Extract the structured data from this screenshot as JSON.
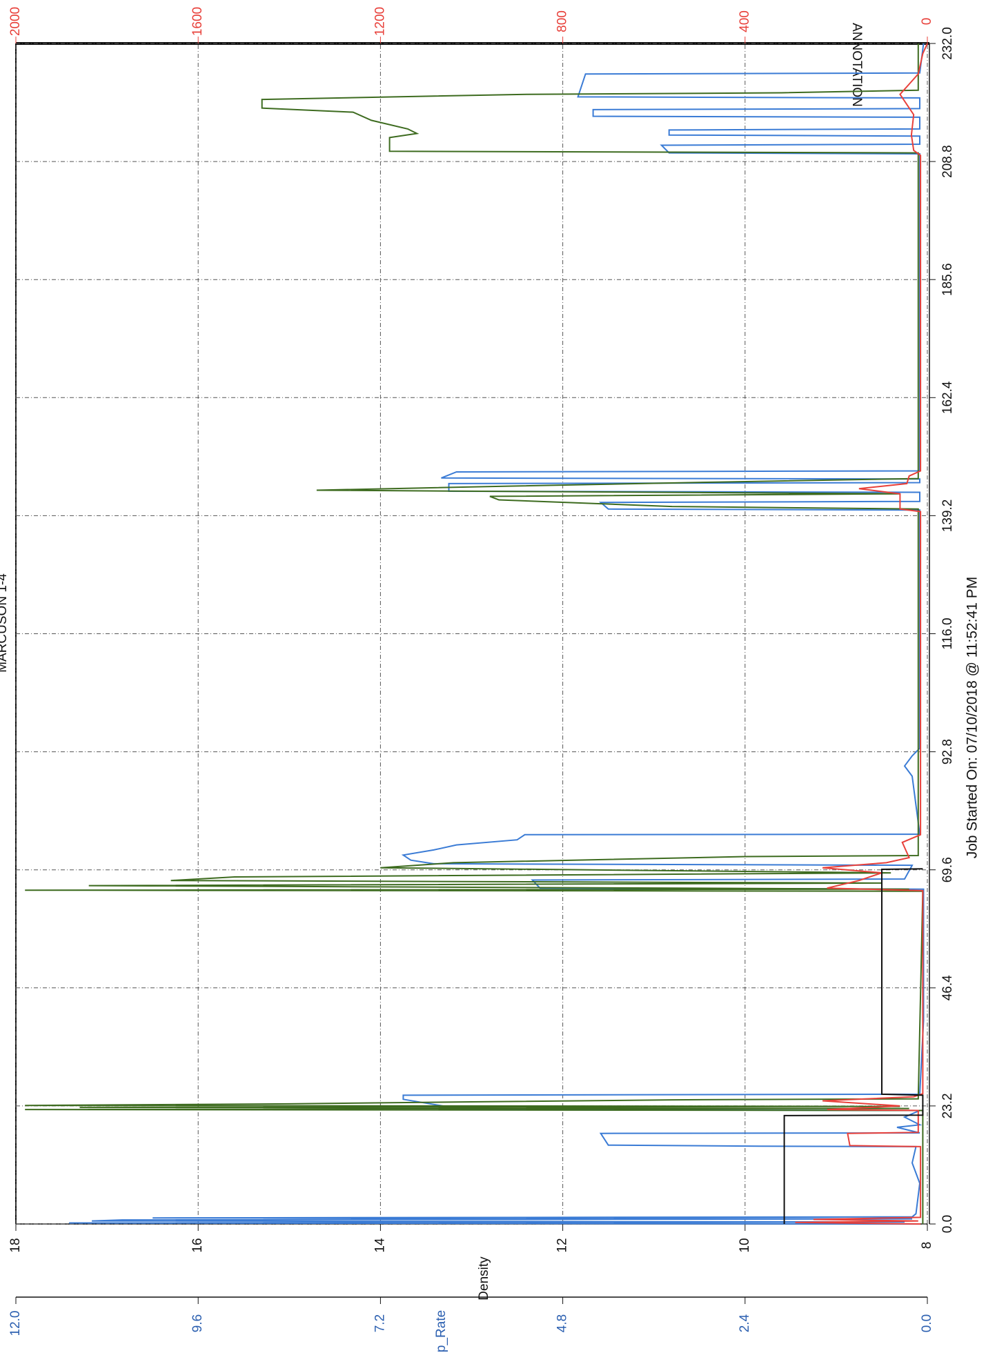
{
  "chart_data": {
    "type": "line",
    "title": "MARCUSON 1-4",
    "xlabel": "Job Started On: 07/10/2018 @ 11:52:41 PM",
    "ylabel": "Density",
    "y2label": "Pump_Rate",
    "annotation": "ANNOTATION",
    "grid": true,
    "xlim": [
      0,
      232
    ],
    "xticks": [
      {
        "value": 0,
        "label": "0.0"
      },
      23.2,
      46.4,
      69.6,
      92.8,
      {
        "value": 116,
        "label": "116.0"
      },
      139.2,
      162.4,
      185.6,
      208.8,
      {
        "value": 232,
        "label": "232.0"
      }
    ],
    "ylim": [
      8,
      18
    ],
    "yticks": [
      8,
      10,
      12,
      14,
      16,
      18
    ],
    "y2lim": [
      0,
      12
    ],
    "y2ticks": [
      {
        "value": 0,
        "label": "0.0"
      },
      2.4,
      4.8,
      7.2,
      9.6,
      {
        "value": 12,
        "label": "12.0"
      }
    ],
    "y3lim": [
      0,
      2000
    ],
    "y3ticks": [
      0,
      400,
      800,
      1200,
      1600,
      2000
    ],
    "y3color": "#e8403a",
    "series": [
      {
        "color": "#3a7bd5",
        "axis": "y2",
        "x": [
          0,
          0.2,
          0.4,
          0.6,
          0.8,
          1.0,
          1.2,
          1.4,
          2,
          8,
          12,
          15.2,
          15.3,
          15.5,
          17.8,
          17.9,
          19,
          19.5,
          21,
          22.3,
          22.5,
          23.5,
          24.5,
          25.3,
          25.5,
          40,
          65.8,
          66,
          67.6,
          67.8,
          70.5,
          70.8,
          71.5,
          72.5,
          73.5,
          74.5,
          75.5,
          76.5,
          76.6,
          88,
          90,
          92,
          93.5,
          140.3,
          140.5,
          141.8,
          142,
          143.8,
          144,
          145.5,
          145.7,
          146.4,
          146.6,
          147.8,
          148,
          210.3,
          210.5,
          212,
          212.2,
          213.8,
          214,
          215,
          215.2,
          217.5,
          217.7,
          219,
          219.2,
          221.3,
          221.5,
          226,
          226.2,
          232
        ],
        "values": [
          0.1,
          11.3,
          0.3,
          11.0,
          10.6,
          0.2,
          10.2,
          0.2,
          0.15,
          0.1,
          0.2,
          0.15,
          2.2,
          4.2,
          4.3,
          0.1,
          0.4,
          0.1,
          0.3,
          0.1,
          6.1,
          6.5,
          6.9,
          6.9,
          0.1,
          0.05,
          0.05,
          5.1,
          5.2,
          0.3,
          0.2,
          6.5,
          6.8,
          6.9,
          6.5,
          6.2,
          5.4,
          5.3,
          0.1,
          0.2,
          0.3,
          0.2,
          0.1,
          0.1,
          4.2,
          4.3,
          0.1,
          0.1,
          6.3,
          6.3,
          0.1,
          0.1,
          6.4,
          6.2,
          0.1,
          0.1,
          3.4,
          3.5,
          0.1,
          0.1,
          3.4,
          3.4,
          0.1,
          0.1,
          4.4,
          4.4,
          0.1,
          0.1,
          4.6,
          4.5,
          0.1,
          0.05
        ]
      },
      {
        "color": "#3d6b1f",
        "axis": "y",
        "x": [
          0,
          22.3,
          22.5,
          22.7,
          22.9,
          23.1,
          23.3,
          23.6,
          24.0,
          24.4,
          24.6,
          65.4,
          65.6,
          65.8,
          66.5,
          67.0,
          67.5,
          68.2,
          69.0,
          70.0,
          71.0,
          72.2,
          72.4,
          140.5,
          141.0,
          142.3,
          143.0,
          143.5,
          144.2,
          145.0,
          145.8,
          146.5,
          210.5,
          210.8,
          213.5,
          214.3,
          215.2,
          216.9,
          218.5,
          219.3,
          221,
          221.6,
          222,
          222.3,
          222.8,
          232
        ],
        "values": [
          8.05,
          8.05,
          17.9,
          8.2,
          17.3,
          8.3,
          17.9,
          15.0,
          13.0,
          10.8,
          8.1,
          8.05,
          17.9,
          8.2,
          17.2,
          8.5,
          16.3,
          15.6,
          8.4,
          14.0,
          13.2,
          10.0,
          8.1,
          8.1,
          10.8,
          12.7,
          12.8,
          8.3,
          14.7,
          12.6,
          10.3,
          8.1,
          8.1,
          13.9,
          13.9,
          13.6,
          13.7,
          14.1,
          14.3,
          15.3,
          15.3,
          13.6,
          12.4,
          9.6,
          8.1,
          8.1
        ]
      },
      {
        "color": "#e8403a",
        "axis": "y3",
        "x": [
          0,
          0.3,
          0.6,
          0.9,
          1.3,
          15.2,
          15.4,
          17.8,
          18,
          22.3,
          22.5,
          23.2,
          24.2,
          25,
          25.6,
          65.5,
          66,
          67.5,
          69,
          70,
          71,
          72,
          75,
          76.5,
          140,
          140.5,
          143.5,
          144.5,
          145.5,
          147,
          148,
          210,
          211,
          214,
          218,
          222,
          224,
          226,
          230,
          232
        ],
        "values": [
          15,
          290,
          20,
          250,
          15,
          15,
          170,
          175,
          20,
          20,
          220,
          60,
          230,
          30,
          10,
          10,
          220,
          150,
          100,
          230,
          90,
          40,
          55,
          15,
          15,
          60,
          60,
          150,
          45,
          40,
          15,
          15,
          30,
          35,
          30,
          60,
          40,
          20,
          10,
          0
        ]
      },
      {
        "color": "#111111",
        "axis": "y",
        "x": [
          0,
          21.3,
          21.4,
          25.3,
          25.5,
          69.7,
          69.8
        ],
        "values": [
          9.57,
          9.57,
          8.05,
          8.05,
          8.5,
          8.5,
          8.05
        ]
      }
    ]
  }
}
